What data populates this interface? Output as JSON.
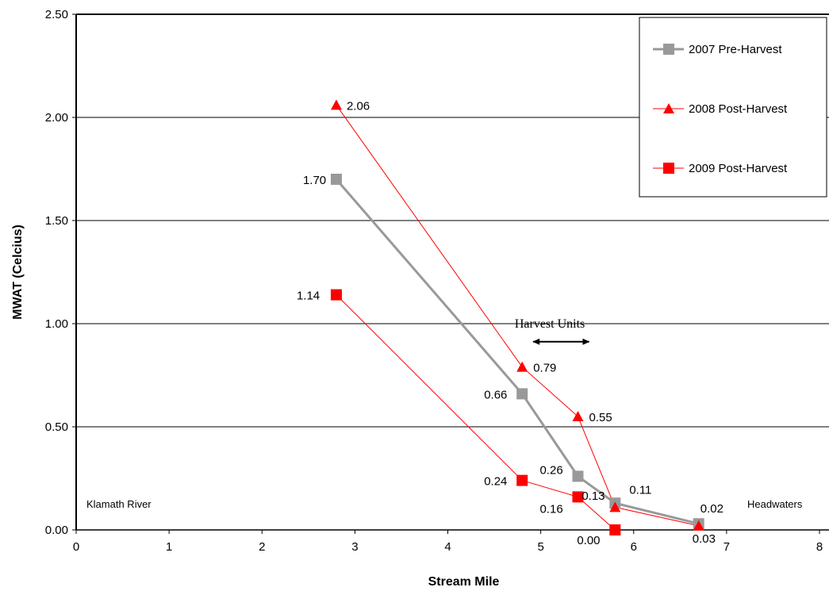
{
  "chart_data": {
    "type": "line",
    "title": "",
    "xlabel": "Stream Mile",
    "ylabel": "MWAT (Celcius)",
    "xlim": [
      0,
      8
    ],
    "ylim": [
      0,
      2.5
    ],
    "x_ticks": [
      "0",
      "1",
      "2",
      "3",
      "4",
      "5",
      "6",
      "7",
      "8"
    ],
    "y_ticks": [
      "0.00",
      "0.50",
      "1.00",
      "1.50",
      "2.00",
      "2.50"
    ],
    "grid": "horizontal",
    "legend_position": "top-right",
    "series": [
      {
        "name": "2007 Pre-Harvest",
        "color": "#999999",
        "marker": "square",
        "x": [
          2.8,
          4.8,
          5.4,
          5.8,
          6.7
        ],
        "y": [
          1.7,
          0.66,
          0.26,
          0.13,
          0.03
        ],
        "labels": [
          "1.70",
          "0.66",
          "0.26",
          "0.13",
          "0.03"
        ]
      },
      {
        "name": "2008 Post-Harvest",
        "color": "#ff0000",
        "marker": "triangle",
        "x": [
          2.8,
          4.8,
          5.4,
          5.8,
          6.7
        ],
        "y": [
          2.06,
          0.79,
          0.55,
          0.11,
          0.02
        ],
        "labels": [
          "2.06",
          "0.79",
          "0.55",
          "0.11",
          "0.02"
        ]
      },
      {
        "name": "2009 Post-Harvest",
        "color": "#ff0000",
        "marker": "square",
        "x": [
          2.8,
          4.8,
          5.4,
          5.8
        ],
        "y": [
          1.14,
          0.24,
          0.16,
          0.0
        ],
        "labels": [
          "1.14",
          "0.24",
          "0.16",
          "0.00"
        ]
      }
    ],
    "annotations": {
      "harvest_units": "Harvest Units",
      "harvest_range": [
        4.8,
        5.4
      ],
      "harvest_y": 0.92,
      "left_note": "Klamath River",
      "right_note": "Headwaters"
    }
  }
}
